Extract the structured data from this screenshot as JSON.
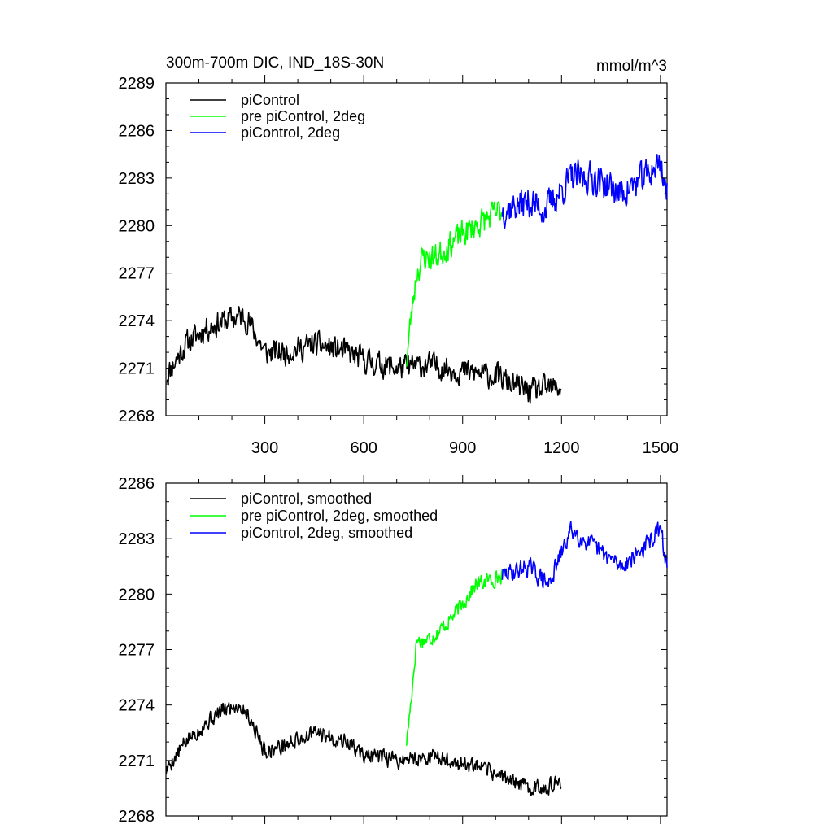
{
  "chart_data": [
    {
      "type": "line",
      "title": "300m-700m DIC, IND_18S-30N",
      "units": "mmol/m^3",
      "xlim": [
        0,
        1520
      ],
      "ylim": [
        2268,
        2289
      ],
      "yticks": [
        2268,
        2271,
        2274,
        2277,
        2280,
        2283,
        2286,
        2289
      ],
      "ytick_labels": [
        "2268",
        "2271",
        "2274",
        "2277",
        "2280",
        "2283",
        "2286",
        "2289"
      ],
      "xticks": [
        300,
        600,
        900,
        1200,
        1500
      ],
      "xtick_labels": [
        "300",
        "600",
        "900",
        "1200",
        "1500"
      ],
      "legend_position": "top-left",
      "series": [
        {
          "name": "piControl",
          "color": "#000000",
          "x_range": [
            1,
            1200
          ],
          "keypoints": [
            [
              1,
              2270.5
            ],
            [
              60,
              2272.5
            ],
            [
              120,
              2273.5
            ],
            [
              180,
              2274.0
            ],
            [
              230,
              2274.3
            ],
            [
              250,
              2274.0
            ],
            [
              300,
              2272.0
            ],
            [
              360,
              2272.0
            ],
            [
              450,
              2272.5
            ],
            [
              550,
              2272.0
            ],
            [
              600,
              2271.5
            ],
            [
              700,
              2271.0
            ],
            [
              800,
              2271.2
            ],
            [
              900,
              2270.8
            ],
            [
              1000,
              2270.5
            ],
            [
              1100,
              2269.5
            ],
            [
              1200,
              2269.8
            ]
          ],
          "noise": 1.1,
          "seed": 11
        },
        {
          "name": "pre piControl, 2deg",
          "color": "#00ff00",
          "x_range": [
            730,
            1020
          ],
          "keypoints": [
            [
              730,
              2271.5
            ],
            [
              745,
              2274.5
            ],
            [
              760,
              2277.0
            ],
            [
              780,
              2278.0
            ],
            [
              820,
              2278.0
            ],
            [
              870,
              2279.0
            ],
            [
              940,
              2280.0
            ],
            [
              1020,
              2281.0
            ]
          ],
          "noise": 1.2,
          "seed": 23
        },
        {
          "name": "piControl, 2deg",
          "color": "#0000ff",
          "x_range": [
            1020,
            1520
          ],
          "keypoints": [
            [
              1020,
              2281.0
            ],
            [
              1100,
              2281.5
            ],
            [
              1150,
              2281.0
            ],
            [
              1230,
              2283.0
            ],
            [
              1300,
              2283.0
            ],
            [
              1380,
              2282.0
            ],
            [
              1450,
              2283.0
            ],
            [
              1500,
              2284.0
            ],
            [
              1520,
              2282.0
            ]
          ],
          "noise": 1.4,
          "seed": 37
        }
      ]
    },
    {
      "type": "line",
      "title": "",
      "xlim": [
        0,
        1520
      ],
      "ylim": [
        2268,
        2286
      ],
      "yticks": [
        2268,
        2271,
        2274,
        2277,
        2280,
        2283,
        2286
      ],
      "ytick_labels": [
        "2268",
        "2271",
        "2274",
        "2277",
        "2280",
        "2283",
        "2286"
      ],
      "xticks": [
        300,
        600,
        900,
        1200,
        1500
      ],
      "xtick_labels": [],
      "legend_position": "top-left",
      "series": [
        {
          "name": "piControl, smoothed",
          "color": "#000000",
          "x_range": [
            1,
            1200
          ],
          "keypoints": [
            [
              1,
              2270.5
            ],
            [
              60,
              2272.0
            ],
            [
              120,
              2273.0
            ],
            [
              180,
              2273.8
            ],
            [
              220,
              2274.0
            ],
            [
              250,
              2273.5
            ],
            [
              300,
              2271.5
            ],
            [
              360,
              2271.8
            ],
            [
              450,
              2272.5
            ],
            [
              550,
              2272.0
            ],
            [
              600,
              2271.3
            ],
            [
              700,
              2271.0
            ],
            [
              800,
              2271.2
            ],
            [
              900,
              2270.8
            ],
            [
              1000,
              2270.3
            ],
            [
              1100,
              2269.5
            ],
            [
              1200,
              2269.7
            ]
          ],
          "noise": 0.6,
          "seed": 5
        },
        {
          "name": "pre piControl, 2deg, smoothed",
          "color": "#00ff00",
          "x_range": [
            730,
            1020
          ],
          "keypoints": [
            [
              730,
              2272.0
            ],
            [
              745,
              2274.5
            ],
            [
              760,
              2277.5
            ],
            [
              790,
              2277.5
            ],
            [
              830,
              2278.0
            ],
            [
              880,
              2279.0
            ],
            [
              940,
              2280.5
            ],
            [
              1020,
              2281.0
            ]
          ],
          "noise": 0.6,
          "seed": 17
        },
        {
          "name": "piControl, 2deg, smoothed",
          "color": "#0000ff",
          "x_range": [
            1020,
            1520
          ],
          "keypoints": [
            [
              1020,
              2281.0
            ],
            [
              1100,
              2281.5
            ],
            [
              1160,
              2280.5
            ],
            [
              1230,
              2283.5
            ],
            [
              1300,
              2282.5
            ],
            [
              1380,
              2281.5
            ],
            [
              1450,
              2282.5
            ],
            [
              1500,
              2283.5
            ],
            [
              1520,
              2281.5
            ]
          ],
          "noise": 0.7,
          "seed": 29
        }
      ]
    }
  ]
}
